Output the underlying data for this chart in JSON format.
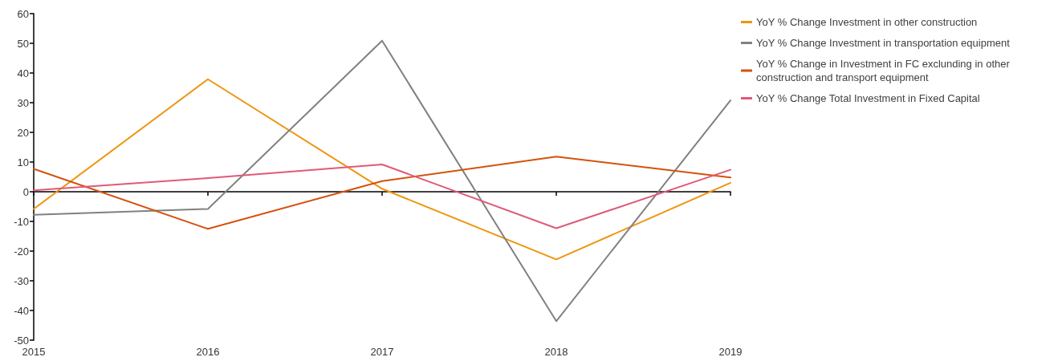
{
  "chart_data": {
    "type": "line",
    "categories": [
      "2015",
      "2016",
      "2017",
      "2018",
      "2019"
    ],
    "series": [
      {
        "name": "YoY % Change Investment in other construction",
        "color": "#ef9510",
        "values": [
          -5.8,
          37.9,
          1,
          -22.8,
          3
        ]
      },
      {
        "name": "YoY % Change Investment in transportation equipment",
        "color": "#808080",
        "values": [
          -7.8,
          -5.8,
          50.9,
          -43.6,
          30.8
        ]
      },
      {
        "name": "YoY % Change in Investment in FC exclunding in other construction and transport equipment",
        "color": "#d4520e",
        "values": [
          7.7,
          -12.5,
          3.6,
          11.8,
          4.8
        ]
      },
      {
        "name": "YoY % Change Total Investment in Fixed Capital",
        "color": "#e05a78",
        "values": [
          0.5,
          4.6,
          9.2,
          -12.3,
          7.4
        ]
      }
    ],
    "ylim": [
      -50,
      60
    ],
    "yticks": [
      -50,
      -40,
      -30,
      -20,
      -10,
      0,
      10,
      20,
      30,
      40,
      50,
      60
    ],
    "legend": "top right",
    "marker": "none",
    "line_style": "solid"
  }
}
